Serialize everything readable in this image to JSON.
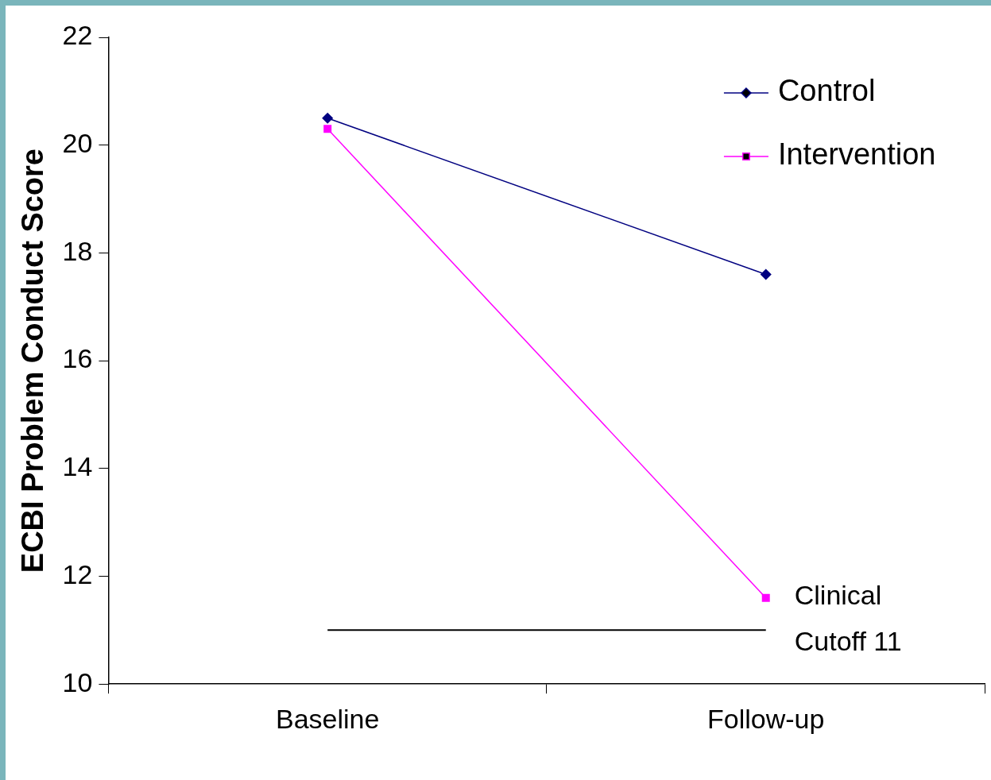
{
  "chart_data": {
    "type": "line",
    "ylabel": "ECBI Problem Conduct Score",
    "categories": [
      "Baseline",
      "Follow-up"
    ],
    "series": [
      {
        "name": "Control",
        "color": "#000080",
        "marker": "diamond",
        "values": [
          20.5,
          17.6
        ]
      },
      {
        "name": "Intervention",
        "color": "#ff00ff",
        "marker": "square",
        "values": [
          20.3,
          11.6
        ]
      }
    ],
    "ylim": [
      10,
      22
    ],
    "yticks": [
      10,
      12,
      14,
      16,
      18,
      20,
      22
    ],
    "grid": false,
    "legend": "top right",
    "line_style": "solid",
    "ref_lines": [
      {
        "axis": "y",
        "value": 11,
        "label": "Clinical Cutoff 11",
        "color": "#000000"
      }
    ]
  }
}
